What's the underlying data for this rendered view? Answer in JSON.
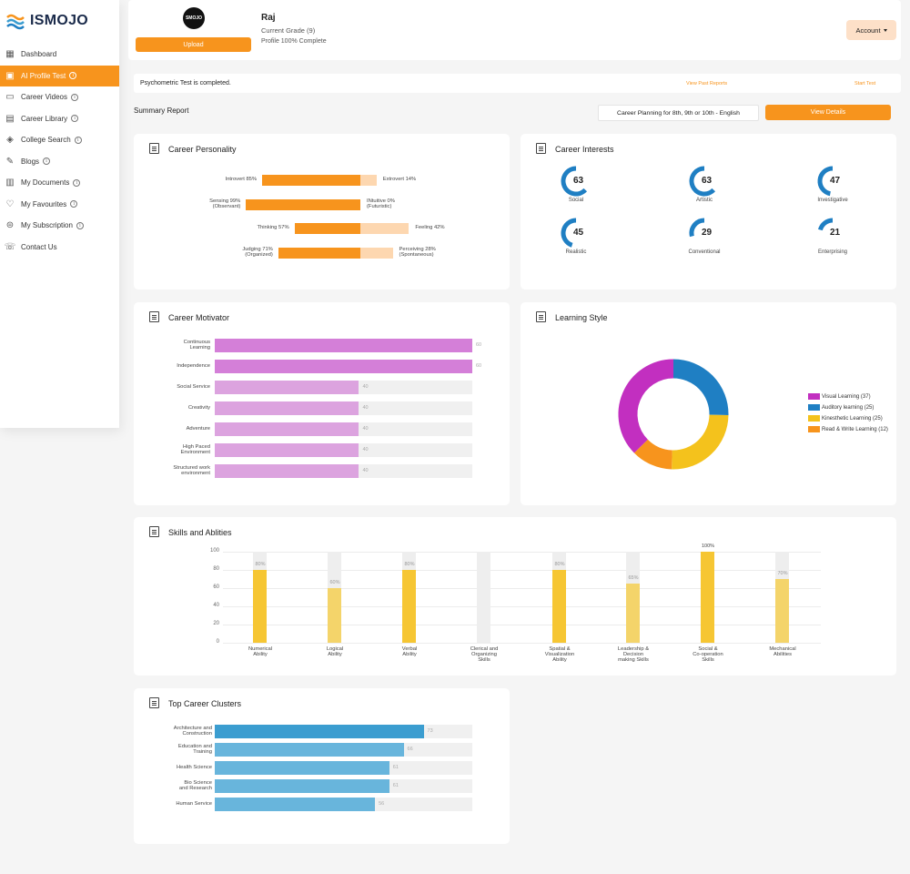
{
  "brand": {
    "name": "ISMOJO"
  },
  "sidebar": {
    "items": [
      {
        "label": "Dashboard",
        "icon": "dashboard-icon",
        "info": false,
        "active": false
      },
      {
        "label": "AI Profile Test",
        "icon": "profile-test-icon",
        "info": true,
        "active": true
      },
      {
        "label": "Career Videos",
        "icon": "video-icon",
        "info": true,
        "active": false
      },
      {
        "label": "Career Library",
        "icon": "library-icon",
        "info": true,
        "active": false
      },
      {
        "label": "College Search",
        "icon": "graduation-cap-icon",
        "info": true,
        "active": false
      },
      {
        "label": "Blogs",
        "icon": "blog-icon",
        "info": true,
        "active": false
      },
      {
        "label": "My Documents",
        "icon": "documents-icon",
        "info": true,
        "active": false
      },
      {
        "label": "My Favourites",
        "icon": "heart-icon",
        "info": true,
        "active": false
      },
      {
        "label": "My Subscription",
        "icon": "subscription-icon",
        "info": true,
        "active": false
      },
      {
        "label": "Contact Us",
        "icon": "contact-icon",
        "info": false,
        "active": false
      }
    ]
  },
  "profile": {
    "avatar_text": "SMOJO",
    "upload_label": "Upload",
    "name": "Raj",
    "grade": "Current Grade (9)",
    "completion": "Profile 100% Complete",
    "account_label": "Account"
  },
  "status": {
    "text": "Psychometric Test is completed.",
    "link_reports": "View Past Reports",
    "link_start": "Start Test"
  },
  "summary": {
    "title": "Summary Report",
    "plan_select": "Career Planning for 8th, 9th or 10th - English",
    "view_details": "View Details"
  },
  "colors": {
    "accent": "#f7941d",
    "accent_light": "#fdd7b0",
    "motivator_dark": "#d47fd8",
    "motivator_light": "#dca3df",
    "skill_dark": "#f6c633",
    "skill_light": "#f4d46a",
    "cluster_dark": "#3b9dd0",
    "cluster_light": "#68b5dc",
    "ring": "#1f7fc3"
  },
  "personality": {
    "title": "Career Personality",
    "rows": [
      {
        "left": "Introvert 85%",
        "right": "Extrovert 14%",
        "left_pct": 85,
        "right_pct": 14
      },
      {
        "left": "Sensing 99%\n(Observant)",
        "right": "INtuitive 0%\n(Futuristic)",
        "left_pct": 99,
        "right_pct": 0
      },
      {
        "left": "Thinking 57%",
        "right": "Feeling 42%",
        "left_pct": 57,
        "right_pct": 42
      },
      {
        "left": "Judging 71%\n(Organized)",
        "right": "Perceiving 28%\n(Spontaneous)",
        "left_pct": 71,
        "right_pct": 28
      }
    ]
  },
  "interests": {
    "title": "Career Interests",
    "items": [
      {
        "value": 63,
        "label": "Social"
      },
      {
        "value": 63,
        "label": "Artistic"
      },
      {
        "value": 47,
        "label": "Investigative"
      },
      {
        "value": 45,
        "label": "Realistic"
      },
      {
        "value": 29,
        "label": "Conventional"
      },
      {
        "value": 21,
        "label": "Enterprising"
      }
    ]
  },
  "motivator": {
    "title": "Career Motivator",
    "max": 60,
    "items": [
      {
        "label": "Continuous\nLearning",
        "value": 60
      },
      {
        "label": "Independence",
        "value": 60
      },
      {
        "label": "Social Service",
        "value": 40
      },
      {
        "label": "Creativity",
        "value": 40
      },
      {
        "label": "Adventure",
        "value": 40
      },
      {
        "label": "High Paced\nEnvironment",
        "value": 40
      },
      {
        "label": "Structured work\nenvironment",
        "value": 40
      }
    ]
  },
  "learning": {
    "title": "Learning Style",
    "items": [
      {
        "label": "Visual Learning (37)",
        "value": 37,
        "color": "#c22fc0"
      },
      {
        "label": "Auditory learning (25)",
        "value": 25,
        "color": "#1f7fc3"
      },
      {
        "label": "Kinesthetic Learning (25)",
        "value": 25,
        "color": "#f4c21c"
      },
      {
        "label": "Read & Write Learning (12)",
        "value": 12,
        "color": "#f7941d"
      }
    ]
  },
  "skills": {
    "title": "Skills and Ablities",
    "ticks": [
      "100",
      "80",
      "60",
      "40",
      "20",
      "0"
    ],
    "items": [
      {
        "label": "Numerical\nAbility",
        "value": 80,
        "value_label": "80%"
      },
      {
        "label": "Logical\nAbility",
        "value": 60,
        "value_label": "60%"
      },
      {
        "label": "Verbal\nAbility",
        "value": 80,
        "value_label": "80%"
      },
      {
        "label": "Clerical and\nOrganizing\nSkills",
        "value": 0,
        "value_label": ""
      },
      {
        "label": "Spatial &\nVisualization\nAbility",
        "value": 80,
        "value_label": "80%"
      },
      {
        "label": "Leadership &\nDecision\nmaking Skills",
        "value": 65,
        "value_label": "65%"
      },
      {
        "label": "Social &\nCo-operation\nSkills",
        "value": 100,
        "value_label": "100%"
      },
      {
        "label": "Mechanical\nAbilities",
        "value": 70,
        "value_label": "70%"
      }
    ]
  },
  "clusters": {
    "title": "Top Career Clusters",
    "max": 90,
    "items": [
      {
        "label": "Architecture and\nConstruction",
        "value": 73
      },
      {
        "label": "Education and\nTraining",
        "value": 66
      },
      {
        "label": "Health Science",
        "value": 61
      },
      {
        "label": "Bio Science\nand Research",
        "value": 61
      },
      {
        "label": "Human Service",
        "value": 56
      }
    ]
  }
}
